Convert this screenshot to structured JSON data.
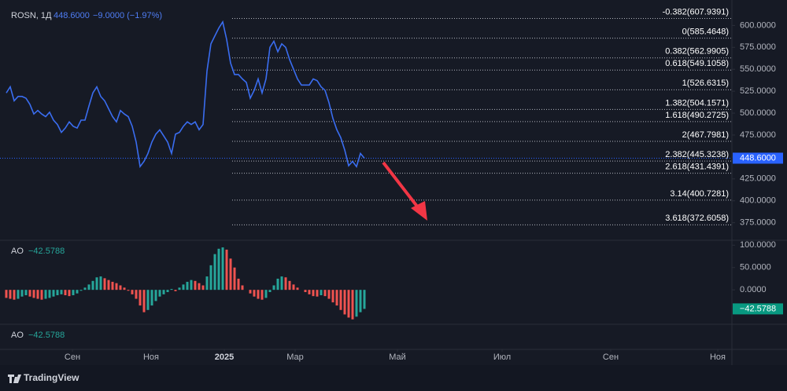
{
  "chart_data": [
    {
      "type": "line",
      "title": "ROSN, 1Д",
      "color": "#3a6df0",
      "last": {
        "value": 448.6,
        "label": "448.6000"
      },
      "change": "−9.0000 (−1.97%)",
      "values": [
        523,
        530,
        514,
        519,
        519,
        517,
        510,
        499,
        503,
        499,
        496,
        501,
        492,
        487,
        478,
        483,
        490,
        485,
        483,
        492,
        492,
        508,
        523,
        530,
        519,
        514,
        505,
        496,
        490,
        503,
        499,
        496,
        485,
        467,
        439,
        445,
        454,
        467,
        476,
        481,
        474,
        467,
        454,
        476,
        478,
        485,
        490,
        487,
        490,
        481,
        487,
        548,
        579,
        588,
        597,
        604,
        584,
        557,
        544,
        544,
        539,
        535,
        517,
        526,
        539,
        523,
        539,
        575,
        582,
        570,
        579,
        575,
        561,
        550,
        539,
        532,
        532,
        532,
        539,
        537,
        530,
        526,
        512,
        494,
        481,
        472,
        458,
        440,
        445,
        439,
        454,
        448.6
      ],
      "ylim": [
        355,
        629
      ],
      "yticks": [
        {
          "value": 375,
          "label": "375.0000"
        },
        {
          "value": 400,
          "label": "400.0000"
        },
        {
          "value": 425,
          "label": "425.0000"
        },
        {
          "value": 450,
          "label": "450.0000"
        },
        {
          "value": 475,
          "label": "475.0000"
        },
        {
          "value": 500,
          "label": "500.0000"
        },
        {
          "value": 525,
          "label": "525.0000"
        },
        {
          "value": 550,
          "label": "550.0000"
        },
        {
          "value": 575,
          "label": "575.0000"
        },
        {
          "value": 600,
          "label": "600.0000"
        }
      ],
      "xlim": [
        -1.6,
        184.4
      ],
      "xticks": [
        {
          "value": 16.8,
          "label": "Сен"
        },
        {
          "value": 36.8,
          "label": "Ноя"
        },
        {
          "value": 55.4,
          "label": "2025"
        },
        {
          "value": 73.4,
          "label": "Мар"
        },
        {
          "value": 99.4,
          "label": "Май"
        },
        {
          "value": 126,
          "label": "Июл"
        },
        {
          "value": 153.6,
          "label": "Сен"
        },
        {
          "value": 180.8,
          "label": "Ноя"
        }
      ],
      "fib_levels": [
        {
          "value": 607.9391,
          "label": "-0.382(607.9391)"
        },
        {
          "value": 585.4648,
          "label": "0(585.4648)"
        },
        {
          "value": 562.9905,
          "label": "0.382(562.9905)"
        },
        {
          "value": 549.1058,
          "label": "0.618(549.1058)"
        },
        {
          "value": 526.6315,
          "label": "1(526.6315)"
        },
        {
          "value": 504.1571,
          "label": "1.382(504.1571)"
        },
        {
          "value": 490.2725,
          "label": "1.618(490.2725)"
        },
        {
          "value": 467.7981,
          "label": "2(467.7981)"
        },
        {
          "value": 445.3238,
          "label": "2.382(445.3238)"
        },
        {
          "value": 431.4391,
          "label": "2.618(431.4391)"
        },
        {
          "value": 400.7281,
          "label": "3.14(400.7281)"
        },
        {
          "value": 372.6058,
          "label": "3.618(372.6058)"
        }
      ]
    },
    {
      "type": "bar",
      "title": "AO",
      "up_color": "#26a69a",
      "down_color": "#ef5350",
      "last": {
        "value": -42.5788,
        "label": "−42.5788"
      },
      "values": [
        -18,
        -20,
        -22,
        -20,
        -15,
        -12,
        -15,
        -18,
        -20,
        -22,
        -20,
        -18,
        -15,
        -12,
        -10,
        -12,
        -14,
        -12,
        -8,
        -2,
        5,
        12,
        20,
        28,
        30,
        26,
        22,
        18,
        15,
        10,
        5,
        -2,
        -10,
        -20,
        -35,
        -50,
        -45,
        -35,
        -25,
        -15,
        -10,
        -5,
        2,
        -3,
        5,
        12,
        18,
        22,
        20,
        15,
        10,
        30,
        55,
        80,
        92,
        95,
        90,
        70,
        50,
        25,
        10,
        0,
        -8,
        -15,
        -20,
        -22,
        -18,
        -5,
        10,
        25,
        30,
        28,
        20,
        12,
        5,
        0,
        -5,
        -10,
        -14,
        -15,
        -12,
        -14,
        -20,
        -28,
        -35,
        -45,
        -55,
        -62,
        -66,
        -60,
        -50,
        -42.5788
      ],
      "ylim": [
        -77,
        111
      ],
      "yticks": [
        {
          "value": 0,
          "label": "0.0000"
        },
        {
          "value": 50,
          "label": "50.0000"
        },
        {
          "value": 100,
          "label": "100.0000"
        }
      ]
    }
  ],
  "footer": {
    "brand": "TradingView"
  }
}
